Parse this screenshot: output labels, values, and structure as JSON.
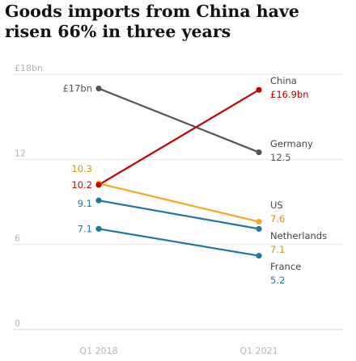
{
  "title": "Goods imports from China have risen 66% in three years",
  "colors": {
    "China": "#c70000",
    "Germany": "#555555",
    "US": "#f5a623",
    "Netherlands": "#2077a0",
    "France": "#2077a0",
    "grid": "#e6e6e6",
    "axis": "#d0d0d0",
    "text": "#333333"
  },
  "chart_data": {
    "type": "line",
    "title": "Goods imports from China have risen 66% in three years",
    "x": [
      "Q1 2018",
      "Q1 2021"
    ],
    "y_ticks": [
      "0",
      "6",
      "12",
      "£18bn"
    ],
    "ylim": [
      0,
      18
    ],
    "grid": true,
    "series": [
      {
        "name": "China",
        "values": [
          10.2,
          16.9
        ],
        "start_label": "10.2",
        "end_label": "£16.9bn",
        "color": "#c70000"
      },
      {
        "name": "Germany",
        "values": [
          17,
          12.5
        ],
        "start_label": "£17bn",
        "end_label": "12.5",
        "color": "#555555"
      },
      {
        "name": "US",
        "values": [
          10.3,
          7.6
        ],
        "start_label": "10.3",
        "end_label": "7.6",
        "color": "#f5a623"
      },
      {
        "name": "Netherlands",
        "values": [
          9.1,
          7.1
        ],
        "start_label": "9.1",
        "end_label": "7.1",
        "color": "#2077a0"
      },
      {
        "name": "France",
        "values": [
          7.1,
          5.2
        ],
        "start_label": "7.1",
        "end_label": "5.2",
        "color": "#2077a0"
      }
    ]
  }
}
